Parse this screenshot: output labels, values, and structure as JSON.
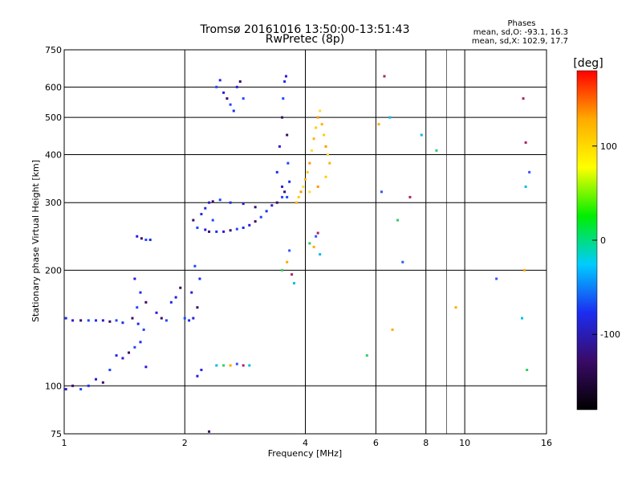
{
  "chart_data": {
    "type": "scatter",
    "title": "Tromsø 20161016 13:50:00-13:51:43",
    "subtitle": "RwPretec (8p)",
    "xlabel": "Frequency [MHz]",
    "ylabel": "Stationary phase Virtual Height [km]",
    "x_scale": "log",
    "y_scale": "log",
    "xlim": [
      1,
      16
    ],
    "ylim": [
      75,
      750
    ],
    "x_ticks": [
      1,
      2,
      4,
      6,
      8,
      10,
      16
    ],
    "x_grid": [
      1,
      2,
      4,
      6,
      8,
      10,
      16
    ],
    "x_minor_grid": [
      9
    ],
    "y_ticks": [
      75,
      100,
      200,
      300,
      400,
      500,
      600,
      750
    ],
    "grid": true,
    "stats": {
      "heading": "Phases",
      "o_line": "mean, sd,O: -93.1, 16.3",
      "x_line": "mean, sd,X: 102.9, 17.7"
    },
    "colorbar": {
      "label": "[deg]",
      "range": [
        -180,
        180
      ],
      "ticks": [
        100,
        0,
        -100
      ],
      "colormap": "rainbow",
      "stops": [
        "#000000",
        "#3a0a66",
        "#1c2cf0",
        "#00ccff",
        "#00ee00",
        "#ffff00",
        "#ffaa00",
        "#ff0000"
      ]
    },
    "series": [
      {
        "mode": "O",
        "phase_mean": -93.1,
        "points": [
          [
            1.01,
            150
          ],
          [
            1.05,
            148
          ],
          [
            1.1,
            148
          ],
          [
            1.15,
            148
          ],
          [
            1.2,
            148
          ],
          [
            1.25,
            148
          ],
          [
            1.3,
            147
          ],
          [
            1.35,
            148
          ],
          [
            1.4,
            146
          ],
          [
            1.01,
            98
          ],
          [
            1.05,
            100
          ],
          [
            1.1,
            98
          ],
          [
            1.15,
            100
          ],
          [
            1.2,
            104
          ],
          [
            1.25,
            102
          ],
          [
            1.3,
            110
          ],
          [
            1.35,
            120
          ],
          [
            1.4,
            118
          ],
          [
            1.45,
            122
          ],
          [
            1.5,
            126
          ],
          [
            1.55,
            130
          ],
          [
            1.6,
            112
          ],
          [
            1.48,
            150
          ],
          [
            1.52,
            160
          ],
          [
            1.55,
            175
          ],
          [
            1.5,
            190
          ],
          [
            1.6,
            165
          ],
          [
            1.58,
            140
          ],
          [
            1.53,
            145
          ],
          [
            1.52,
            245
          ],
          [
            1.56,
            242
          ],
          [
            1.6,
            240
          ],
          [
            1.64,
            240
          ],
          [
            1.7,
            155
          ],
          [
            1.75,
            150
          ],
          [
            1.8,
            148
          ],
          [
            1.85,
            165
          ],
          [
            1.9,
            170
          ],
          [
            1.95,
            180
          ],
          [
            2.0,
            150
          ],
          [
            2.05,
            148
          ],
          [
            2.1,
            150
          ],
          [
            2.15,
            160
          ],
          [
            2.12,
            205
          ],
          [
            2.18,
            190
          ],
          [
            2.08,
            175
          ],
          [
            2.1,
            270
          ],
          [
            2.15,
            258
          ],
          [
            2.2,
            280
          ],
          [
            2.25,
            255
          ],
          [
            2.3,
            252
          ],
          [
            2.35,
            270
          ],
          [
            2.4,
            252
          ],
          [
            2.5,
            252
          ],
          [
            2.6,
            254
          ],
          [
            2.7,
            256
          ],
          [
            2.8,
            258
          ],
          [
            2.9,
            262
          ],
          [
            3.0,
            268
          ],
          [
            3.1,
            275
          ],
          [
            3.2,
            285
          ],
          [
            3.3,
            295
          ],
          [
            3.4,
            300
          ],
          [
            3.5,
            310
          ],
          [
            2.25,
            290
          ],
          [
            2.3,
            300
          ],
          [
            2.35,
            302
          ],
          [
            2.45,
            305
          ],
          [
            2.6,
            300
          ],
          [
            2.8,
            298
          ],
          [
            3.0,
            292
          ],
          [
            2.4,
            600
          ],
          [
            2.45,
            625
          ],
          [
            2.5,
            580
          ],
          [
            2.55,
            560
          ],
          [
            2.6,
            540
          ],
          [
            2.65,
            520
          ],
          [
            2.7,
            600
          ],
          [
            2.75,
            620
          ],
          [
            2.8,
            560
          ],
          [
            3.4,
            360
          ],
          [
            3.45,
            420
          ],
          [
            3.5,
            500
          ],
          [
            3.52,
            560
          ],
          [
            3.55,
            620
          ],
          [
            3.58,
            640
          ],
          [
            3.6,
            450
          ],
          [
            3.62,
            380
          ],
          [
            3.65,
            340
          ],
          [
            3.5,
            330
          ],
          [
            3.55,
            320
          ],
          [
            3.6,
            310
          ],
          [
            2.2,
            110
          ],
          [
            2.15,
            106
          ],
          [
            2.3,
            76
          ]
        ]
      },
      {
        "mode": "X",
        "phase_mean": 102.9,
        "points": [
          [
            3.8,
            300
          ],
          [
            3.85,
            310
          ],
          [
            3.9,
            320
          ],
          [
            3.95,
            330
          ],
          [
            4.0,
            345
          ],
          [
            4.05,
            360
          ],
          [
            4.1,
            380
          ],
          [
            4.15,
            410
          ],
          [
            4.2,
            440
          ],
          [
            4.25,
            470
          ],
          [
            4.3,
            500
          ],
          [
            4.35,
            520
          ],
          [
            4.4,
            480
          ],
          [
            4.45,
            450
          ],
          [
            4.5,
            420
          ],
          [
            4.55,
            400
          ],
          [
            4.6,
            380
          ],
          [
            4.5,
            350
          ],
          [
            4.3,
            330
          ],
          [
            4.1,
            320
          ]
        ]
      },
      {
        "mode": "other",
        "points": [
          [
            2.4,
            113
          ],
          [
            2.5,
            113
          ],
          [
            2.6,
            113
          ],
          [
            2.7,
            114
          ],
          [
            2.8,
            113
          ],
          [
            2.9,
            113
          ],
          [
            3.5,
            200
          ],
          [
            3.6,
            210
          ],
          [
            3.65,
            225
          ],
          [
            3.7,
            195
          ],
          [
            3.75,
            185
          ],
          [
            4.1,
            235
          ],
          [
            4.2,
            230
          ],
          [
            4.25,
            245
          ],
          [
            4.3,
            250
          ],
          [
            4.35,
            220
          ],
          [
            5.7,
            120
          ],
          [
            6.1,
            480
          ],
          [
            6.2,
            320
          ],
          [
            6.3,
            640
          ],
          [
            6.5,
            500
          ],
          [
            6.8,
            270
          ],
          [
            6.6,
            140
          ],
          [
            7.0,
            210
          ],
          [
            7.3,
            310
          ],
          [
            7.8,
            450
          ],
          [
            8.5,
            410
          ],
          [
            9.5,
            160
          ],
          [
            12.0,
            190
          ],
          [
            14.0,
            560
          ],
          [
            14.2,
            330
          ],
          [
            14.3,
            110
          ],
          [
            14.1,
            200
          ],
          [
            14.5,
            360
          ],
          [
            14.2,
            430
          ],
          [
            13.9,
            150
          ]
        ]
      }
    ]
  }
}
